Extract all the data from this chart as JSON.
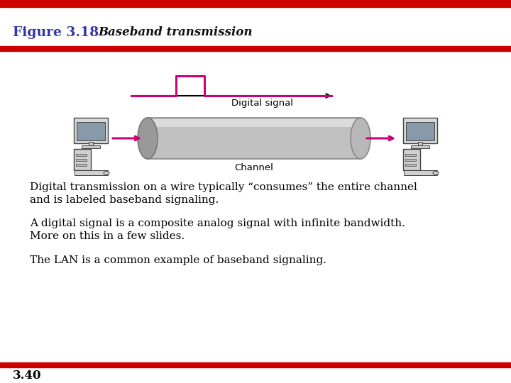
{
  "title_bold": "Figure 3.18",
  "title_italic": "Baseband transmission",
  "title_color_bold": "#3333aa",
  "bg_color": "#ffffff",
  "red_bar_color": "#cc0000",
  "body_text_color": "#000000",
  "magenta_color": "#cc0077",
  "text1": "Digital transmission on a wire typically “consumes” the entire channel",
  "text2": "and is labeled baseband signaling.",
  "text3": "A digital signal is a composite analog signal with infinite bandwidth.",
  "text4": "More on this in a few slides.",
  "text5": "The LAN is a common example of baseband signaling.",
  "page_num": "3.40",
  "digital_signal_label": "Digital signal",
  "channel_label": "Channel"
}
